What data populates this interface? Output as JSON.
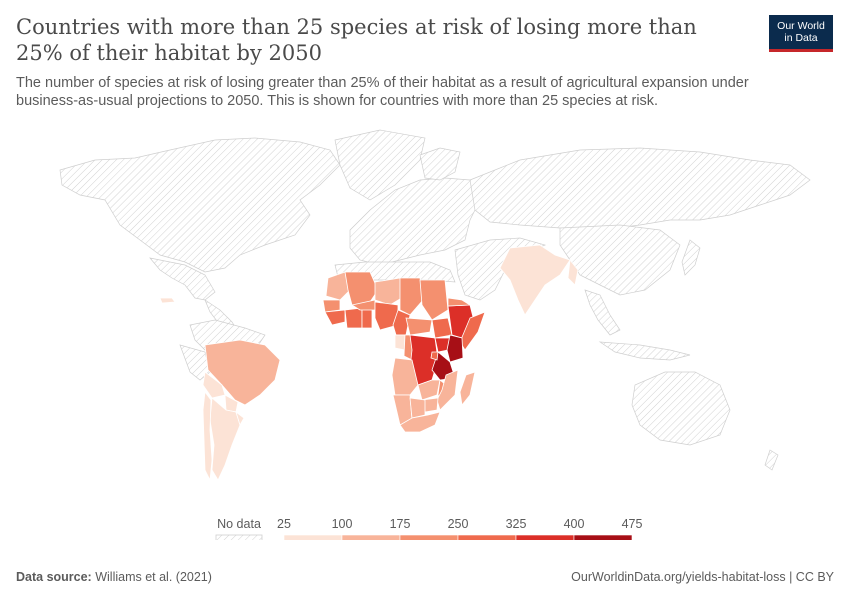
{
  "header": {
    "title": "Countries with more than 25 species at risk of losing more than 25% of their habitat by 2050",
    "subtitle": "The number of species at risk of losing greater than 25% of their habitat as a result of agricultural expansion under business-as-usual projections to 2050. This is shown for countries with more than 25 species at risk.",
    "logo_line1": "Our World",
    "logo_line2": "in Data"
  },
  "legend": {
    "no_data_label": "No data",
    "ticks": [
      "25",
      "100",
      "175",
      "250",
      "325",
      "400",
      "475"
    ],
    "colors": [
      "#fce3d6",
      "#f8b49a",
      "#f4906f",
      "#ef6a4d",
      "#dc2f28",
      "#a70f16"
    ]
  },
  "footer": {
    "source_label": "Data source:",
    "source_value": "Williams et al. (2021)",
    "url": "OurWorldinData.org/yields-habitat-loss | CC BY"
  },
  "colors": {
    "nodata_stroke": "#cfcfcf",
    "border": "#ffffff",
    "title": "#4a4a4a",
    "logo_bg": "#0b2b4d",
    "logo_accent": "#c6272a"
  }
}
